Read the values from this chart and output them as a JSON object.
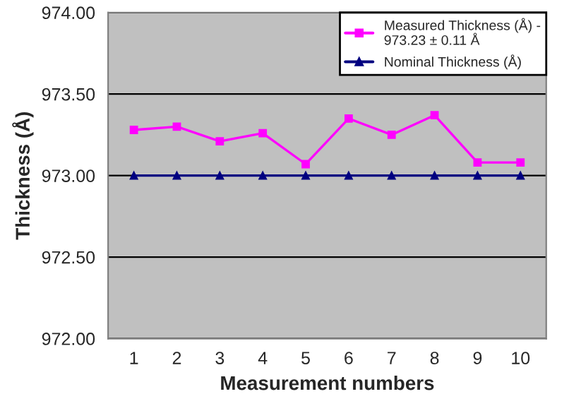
{
  "chart_data": {
    "type": "line",
    "xlabel": "Measurement numbers",
    "ylabel": "Thickness (Å)",
    "categories": [
      "1",
      "2",
      "3",
      "4",
      "5",
      "6",
      "7",
      "8",
      "9",
      "10"
    ],
    "series": [
      {
        "name": "Measured Thickness (Å) - 973.23 ± 0.11 Å",
        "color": "#ff00ff",
        "marker": "square",
        "values": [
          973.28,
          973.3,
          973.21,
          973.26,
          973.07,
          973.35,
          973.25,
          973.37,
          973.08,
          973.08
        ]
      },
      {
        "name": "Nominal Thickness (Å)",
        "color": "#000080",
        "marker": "triangle",
        "values": [
          973.0,
          973.0,
          973.0,
          973.0,
          973.0,
          973.0,
          973.0,
          973.0,
          973.0,
          973.0
        ]
      }
    ],
    "ylim": [
      972.0,
      974.0
    ],
    "yticks": [
      {
        "value": 972.0,
        "label": "972.00"
      },
      {
        "value": 972.5,
        "label": "972.50"
      },
      {
        "value": 973.0,
        "label": "973.00"
      },
      {
        "value": 973.5,
        "label": "973.50"
      },
      {
        "value": 974.0,
        "label": "974.00"
      }
    ],
    "grid": "y",
    "legend": "top right",
    "line_style": "solid"
  }
}
